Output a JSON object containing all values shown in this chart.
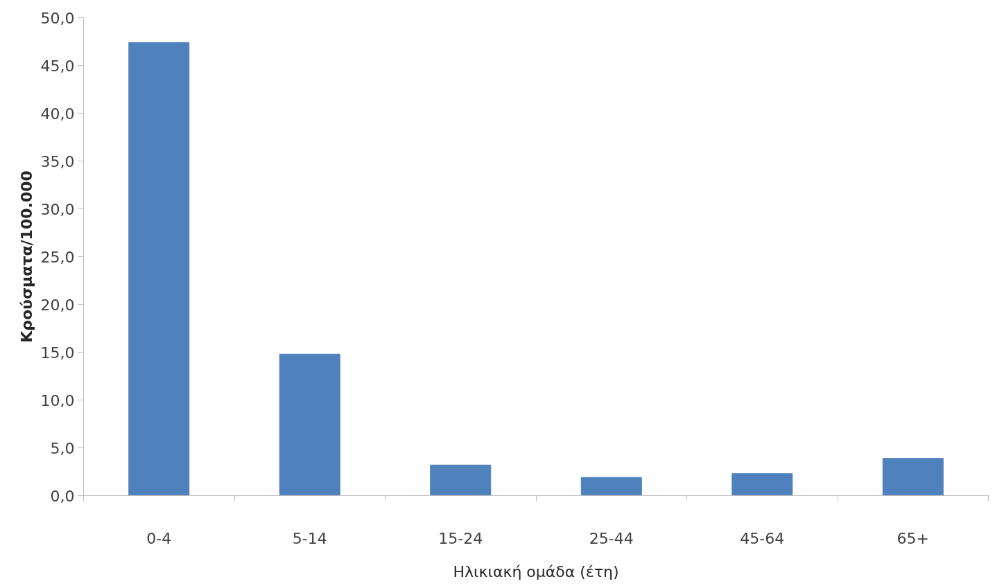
{
  "chart_data": {
    "type": "bar",
    "xlabel": "Ηλικιακή ομάδα (έτη)",
    "ylabel": "Κρούσματα/100.000",
    "categories": [
      "0-4",
      "5-14",
      "15-24",
      "25-44",
      "45-64",
      "65+"
    ],
    "values": [
      47.4,
      14.8,
      3.2,
      1.9,
      2.3,
      3.9
    ],
    "color": "#4f81bd",
    "ylim": [
      0,
      50
    ],
    "yticks": [
      {
        "value": 0,
        "label": "0,0"
      },
      {
        "value": 5,
        "label": "5,0"
      },
      {
        "value": 10,
        "label": "10,0"
      },
      {
        "value": 15,
        "label": "15,0"
      },
      {
        "value": 20,
        "label": "20,0"
      },
      {
        "value": 25,
        "label": "25,0"
      },
      {
        "value": 30,
        "label": "30,0"
      },
      {
        "value": 35,
        "label": "35,0"
      },
      {
        "value": 40,
        "label": "40,0"
      },
      {
        "value": 45,
        "label": "45,0"
      },
      {
        "value": 50,
        "label": "50,0"
      }
    ],
    "grid": false
  }
}
